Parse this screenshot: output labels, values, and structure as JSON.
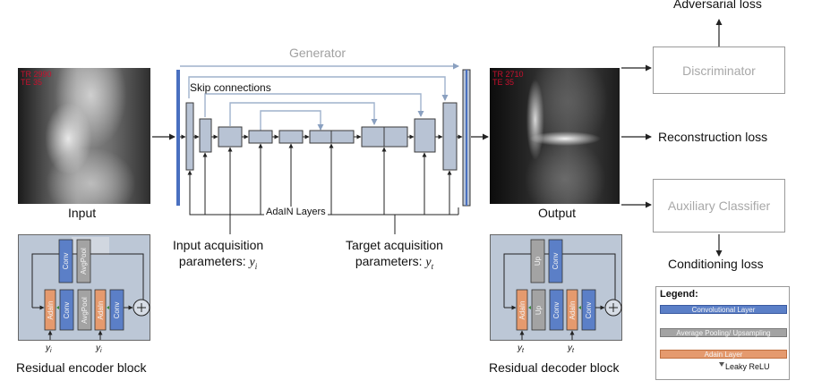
{
  "input": {
    "label": "Input",
    "tag_line1": "TR 2990",
    "tag_line2": "TE 35"
  },
  "output": {
    "label": "Output",
    "tag_line1": "TR 2710",
    "tag_line2": "TE 35"
  },
  "generator": {
    "title": "Generator",
    "skip_label": "Skip connections",
    "adain_label": "AdaIN Layers",
    "input_params_line1": "Input acquisition",
    "input_params_line2": "parameters: ",
    "input_params_symbol": "y",
    "input_params_sub": "i",
    "target_params_line1": "Target acquisition",
    "target_params_line2": "parameters: ",
    "target_params_symbol": "y",
    "target_params_sub": "t"
  },
  "discriminator": {
    "label": "Discriminator",
    "loss": "Adversarial loss"
  },
  "reconstruction_loss": "Reconstruction loss",
  "classifier": {
    "label": "Auxiliary Classifier",
    "loss": "Conditioning loss"
  },
  "encoder_block": {
    "caption": "Residual encoder block",
    "conv": "Conv",
    "avgpool": "AvgPool",
    "adain": "AdaIn",
    "y": "y",
    "y_sub": "i"
  },
  "decoder_block": {
    "caption": "Residual decoder block",
    "up": "Up",
    "conv": "Conv",
    "adain": "AdaIn",
    "y": "y",
    "y_sub": "t"
  },
  "legend": {
    "title": "Legend:",
    "items": [
      {
        "label": "Convolutional Layer",
        "color": "#5b7fc7"
      },
      {
        "label": "Average Pooling/ Upsampling",
        "color": "#a3a3a3"
      },
      {
        "label": "Adain Layer",
        "color": "#e59a6e"
      }
    ],
    "relu_label": "Leaky ReLU",
    "relu_color": "#555555"
  },
  "colors": {
    "layer_fill": "#b8c3d4",
    "layer_border": "#3a3a3a",
    "generator_bar": "#4a70c0",
    "skip_arrow": "#9fb2cc",
    "conv": "#5b7fc7",
    "pool": "#a3a3a3",
    "adain": "#e59a6e"
  }
}
